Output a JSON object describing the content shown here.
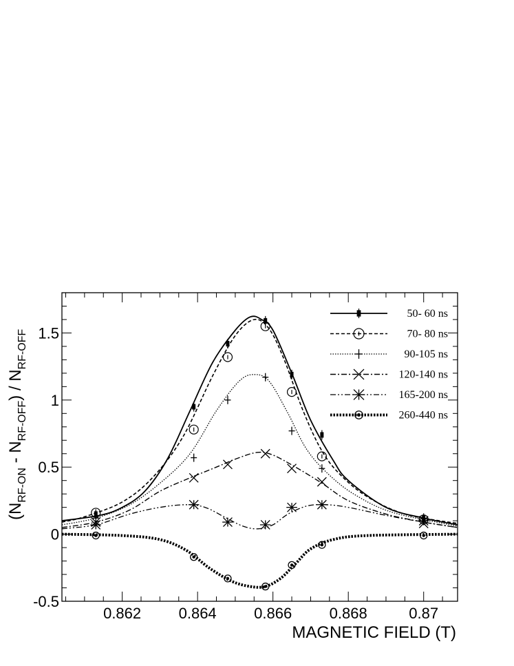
{
  "chart_data": {
    "type": "line",
    "xlabel": "MAGNETIC FIELD (T)",
    "ylabel": {
      "open": "(N",
      "sub1": "RF-ON",
      "mid": " - N",
      "sub2": "RF-OFF",
      "close": ") / N",
      "sub3": "RF-OFF"
    },
    "xlim": [
      0.8604,
      0.8709
    ],
    "ylim": [
      -0.5,
      1.8
    ],
    "xticks": [
      0.862,
      0.864,
      0.866,
      0.868,
      0.87
    ],
    "xtick_labels": [
      "0.862",
      "0.864",
      "0.866",
      "0.868",
      "0.87"
    ],
    "yticks": [
      -0.5,
      0,
      0.5,
      1,
      1.5
    ],
    "ytick_labels": [
      "-0.5",
      "0",
      "0.5",
      "1",
      "1.5"
    ],
    "legend_position": "top-right",
    "series": [
      {
        "name": "50- 60 ns",
        "line": "solid",
        "marker": "filled-square",
        "points": [
          [
            0.8613,
            0.15
          ],
          [
            0.8639,
            0.95
          ],
          [
            0.8648,
            1.42
          ],
          [
            0.8658,
            1.59
          ],
          [
            0.8665,
            1.19
          ],
          [
            0.8673,
            0.74
          ],
          [
            0.87,
            0.12
          ]
        ],
        "curve": [
          [
            0.8604,
            0.1
          ],
          [
            0.8614,
            0.14
          ],
          [
            0.862,
            0.2
          ],
          [
            0.8626,
            0.32
          ],
          [
            0.8632,
            0.56
          ],
          [
            0.8638,
            0.92
          ],
          [
            0.8644,
            1.28
          ],
          [
            0.865,
            1.52
          ],
          [
            0.8654,
            1.62
          ],
          [
            0.8657,
            1.6
          ],
          [
            0.866,
            1.52
          ],
          [
            0.8665,
            1.2
          ],
          [
            0.867,
            0.85
          ],
          [
            0.8676,
            0.55
          ],
          [
            0.868,
            0.4
          ],
          [
            0.869,
            0.2
          ],
          [
            0.87,
            0.12
          ],
          [
            0.8709,
            0.07
          ]
        ]
      },
      {
        "name": "70- 80 ns",
        "line": "dashed",
        "marker": "open-circle",
        "points": [
          [
            0.8613,
            0.16
          ],
          [
            0.8639,
            0.78
          ],
          [
            0.8648,
            1.32
          ],
          [
            0.8658,
            1.55
          ],
          [
            0.8665,
            1.06
          ],
          [
            0.8673,
            0.58
          ],
          [
            0.87,
            0.11
          ]
        ],
        "curve": [
          [
            0.8604,
            0.09
          ],
          [
            0.861,
            0.13
          ],
          [
            0.862,
            0.24
          ],
          [
            0.8628,
            0.42
          ],
          [
            0.8636,
            0.72
          ],
          [
            0.8644,
            1.18
          ],
          [
            0.865,
            1.48
          ],
          [
            0.8655,
            1.6
          ],
          [
            0.8659,
            1.53
          ],
          [
            0.8663,
            1.3
          ],
          [
            0.8668,
            0.92
          ],
          [
            0.8673,
            0.62
          ],
          [
            0.8678,
            0.44
          ],
          [
            0.8685,
            0.28
          ],
          [
            0.8695,
            0.15
          ],
          [
            0.8709,
            0.08
          ]
        ]
      },
      {
        "name": "90-105 ns",
        "line": "dotted",
        "marker": "plus",
        "points": [
          [
            0.8613,
            0.12
          ],
          [
            0.8639,
            0.57
          ],
          [
            0.8648,
            1.0
          ],
          [
            0.8658,
            1.17
          ],
          [
            0.8665,
            0.77
          ],
          [
            0.8673,
            0.49
          ],
          [
            0.87,
            0.1
          ]
        ],
        "curve": [
          [
            0.8604,
            0.07
          ],
          [
            0.8613,
            0.12
          ],
          [
            0.8622,
            0.22
          ],
          [
            0.863,
            0.38
          ],
          [
            0.8638,
            0.6
          ],
          [
            0.8645,
            0.92
          ],
          [
            0.8651,
            1.14
          ],
          [
            0.8655,
            1.19
          ],
          [
            0.8659,
            1.14
          ],
          [
            0.8664,
            0.9
          ],
          [
            0.8669,
            0.63
          ],
          [
            0.8675,
            0.44
          ],
          [
            0.8682,
            0.29
          ],
          [
            0.8692,
            0.16
          ],
          [
            0.8709,
            0.06
          ]
        ]
      },
      {
        "name": "120-140 ns",
        "line": "dash-dot",
        "marker": "x-cross",
        "points": [
          [
            0.8613,
            0.09
          ],
          [
            0.8639,
            0.42
          ],
          [
            0.8648,
            0.52
          ],
          [
            0.8658,
            0.6
          ],
          [
            0.8665,
            0.49
          ],
          [
            0.8673,
            0.39
          ],
          [
            0.87,
            0.08
          ]
        ],
        "curve": [
          [
            0.8604,
            0.05
          ],
          [
            0.8613,
            0.09
          ],
          [
            0.8622,
            0.18
          ],
          [
            0.863,
            0.32
          ],
          [
            0.8638,
            0.42
          ],
          [
            0.8645,
            0.5
          ],
          [
            0.8651,
            0.57
          ],
          [
            0.8656,
            0.61
          ],
          [
            0.866,
            0.59
          ],
          [
            0.8666,
            0.5
          ],
          [
            0.8673,
            0.38
          ],
          [
            0.868,
            0.25
          ],
          [
            0.869,
            0.15
          ],
          [
            0.87,
            0.09
          ],
          [
            0.8709,
            0.05
          ]
        ]
      },
      {
        "name": "165-200 ns",
        "line": "dash-dot-dot",
        "marker": "asterisk",
        "points": [
          [
            0.8613,
            0.07
          ],
          [
            0.8639,
            0.22
          ],
          [
            0.8648,
            0.09
          ],
          [
            0.8658,
            0.07
          ],
          [
            0.8665,
            0.2
          ],
          [
            0.8673,
            0.22
          ],
          [
            0.87,
            0.1
          ]
        ],
        "curve": [
          [
            0.8604,
            0.04
          ],
          [
            0.8613,
            0.07
          ],
          [
            0.8622,
            0.15
          ],
          [
            0.863,
            0.2
          ],
          [
            0.8637,
            0.22
          ],
          [
            0.8642,
            0.2
          ],
          [
            0.8647,
            0.13
          ],
          [
            0.8652,
            0.06
          ],
          [
            0.8656,
            0.04
          ],
          [
            0.866,
            0.07
          ],
          [
            0.8664,
            0.15
          ],
          [
            0.8669,
            0.21
          ],
          [
            0.8674,
            0.22
          ],
          [
            0.868,
            0.2
          ],
          [
            0.869,
            0.14
          ],
          [
            0.87,
            0.09
          ],
          [
            0.8709,
            0.05
          ]
        ]
      },
      {
        "name": "260-440 ns",
        "line": "thick-dotted",
        "marker": "filled-circle",
        "points": [
          [
            0.8613,
            -0.01
          ],
          [
            0.8639,
            -0.17
          ],
          [
            0.8648,
            -0.33
          ],
          [
            0.8658,
            -0.39
          ],
          [
            0.8665,
            -0.23
          ],
          [
            0.8673,
            -0.08
          ],
          [
            0.87,
            -0.01
          ]
        ],
        "curve": [
          [
            0.8604,
            0.0
          ],
          [
            0.862,
            -0.01
          ],
          [
            0.863,
            -0.04
          ],
          [
            0.8637,
            -0.12
          ],
          [
            0.8643,
            -0.25
          ],
          [
            0.8649,
            -0.35
          ],
          [
            0.8654,
            -0.39
          ],
          [
            0.8658,
            -0.39
          ],
          [
            0.8662,
            -0.33
          ],
          [
            0.8666,
            -0.22
          ],
          [
            0.867,
            -0.11
          ],
          [
            0.8676,
            -0.04
          ],
          [
            0.8685,
            -0.01
          ],
          [
            0.8709,
            0.0
          ]
        ]
      }
    ]
  }
}
